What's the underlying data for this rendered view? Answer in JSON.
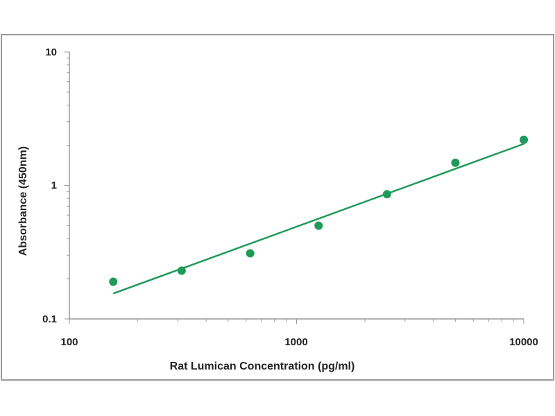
{
  "chart_data": {
    "type": "scatter",
    "title": "",
    "xlabel": "Rat Lumican Concentration (pg/ml)",
    "ylabel": "Absorbance (450nm)",
    "x_scale": "log",
    "y_scale": "log",
    "xlim": [
      100,
      10000
    ],
    "ylim": [
      0.1,
      10
    ],
    "x_ticks": [
      "100",
      "1000",
      "10000"
    ],
    "y_ticks": [
      "0.1",
      "1",
      "10"
    ],
    "grid": false,
    "legend": "none",
    "series": [
      {
        "points": [
          {
            "x": 156,
            "y": 0.19
          },
          {
            "x": 312,
            "y": 0.23
          },
          {
            "x": 625,
            "y": 0.31
          },
          {
            "x": 1250,
            "y": 0.5
          },
          {
            "x": 2500,
            "y": 0.86
          },
          {
            "x": 5000,
            "y": 1.48
          },
          {
            "x": 10000,
            "y": 2.2
          }
        ],
        "color": "#1f9a5a"
      }
    ],
    "fit_line": {
      "from": {
        "x": 156,
        "y": 0.155
      },
      "to": {
        "x": 10000,
        "y": 2.05
      },
      "color": "#1f9a5a"
    }
  }
}
